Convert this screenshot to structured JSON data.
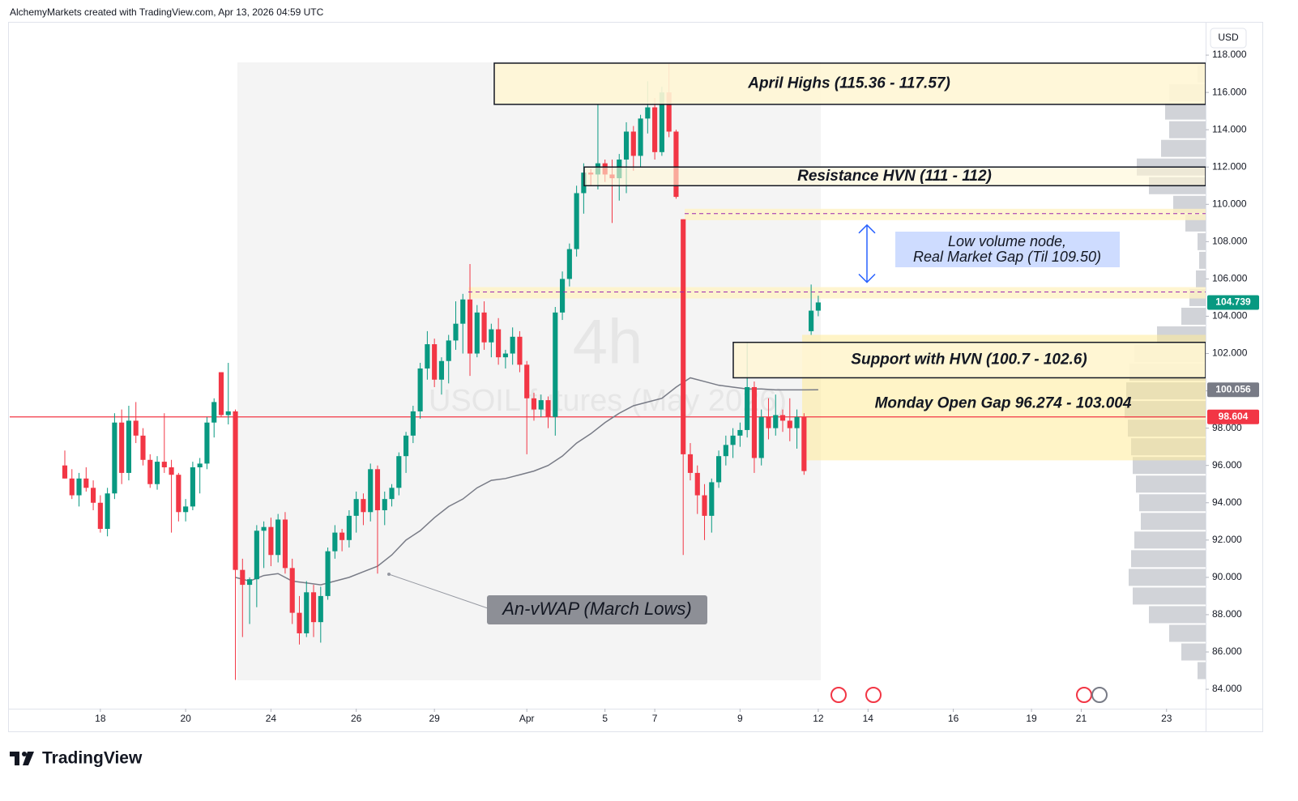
{
  "header": "AlchemyMarkets created with TradingView.com, Apr 13, 2026 04:59 UTC",
  "footer": "TradingView",
  "chart_data": {
    "type": "candlestick",
    "watermark": {
      "interval": "4h",
      "symbol": "USOIL futures (May 2026)"
    },
    "currency": "USD",
    "up_color": "#089981",
    "down_color": "#f23645",
    "ylim": [
      82.96,
      120.0
    ],
    "yticks": [
      {
        "value": 84,
        "label": "84.000"
      },
      {
        "value": 86,
        "label": "86.000"
      },
      {
        "value": 88,
        "label": "88.000"
      },
      {
        "value": 90,
        "label": "90.000"
      },
      {
        "value": 92,
        "label": "92.000"
      },
      {
        "value": 94,
        "label": "94.000"
      },
      {
        "value": 96,
        "label": "96.000"
      },
      {
        "value": 98,
        "label": "98.000"
      },
      {
        "value": 100,
        "label": "100.000"
      },
      {
        "value": 102,
        "label": "102.000"
      },
      {
        "value": 104,
        "label": "104.000"
      },
      {
        "value": 106,
        "label": "106.000"
      },
      {
        "value": 108,
        "label": "108.000"
      },
      {
        "value": 110,
        "label": "110.000"
      },
      {
        "value": 112,
        "label": "112.000"
      },
      {
        "value": 114,
        "label": "114.000"
      },
      {
        "value": 116,
        "label": "116.000"
      },
      {
        "value": 118,
        "label": "118.000"
      }
    ],
    "xlim": [
      -7.75,
      160.5
    ],
    "xticks": [
      {
        "value": 5,
        "label": "18"
      },
      {
        "value": 17,
        "label": "20"
      },
      {
        "value": 29,
        "label": "24"
      },
      {
        "value": 41,
        "label": "26"
      },
      {
        "value": 52,
        "label": "29"
      },
      {
        "value": 65,
        "label": "Apr"
      },
      {
        "value": 76,
        "label": "5"
      },
      {
        "value": 83,
        "label": "7"
      },
      {
        "value": 95,
        "label": "9"
      },
      {
        "value": 106,
        "label": "12"
      },
      {
        "value": 113,
        "label": "14"
      },
      {
        "value": 125,
        "label": "16"
      },
      {
        "value": 136,
        "label": "19"
      },
      {
        "value": 143,
        "label": "21"
      },
      {
        "value": 155,
        "label": "23"
      }
    ],
    "candles": [
      [
        96.0,
        96.8,
        95.3,
        95.3
      ],
      [
        95.3,
        95.8,
        94.2,
        94.4
      ],
      [
        94.4,
        95.6,
        93.8,
        95.3
      ],
      [
        95.3,
        95.9,
        94.6,
        94.8
      ],
      [
        94.8,
        95.2,
        93.6,
        94.0
      ],
      [
        94.0,
        94.4,
        92.4,
        92.6
      ],
      [
        92.6,
        94.8,
        92.2,
        94.5
      ],
      [
        94.5,
        98.8,
        94.2,
        98.3
      ],
      [
        98.3,
        99.0,
        95.0,
        95.6
      ],
      [
        95.6,
        99.2,
        95.2,
        98.4
      ],
      [
        98.4,
        99.4,
        97.2,
        97.6
      ],
      [
        97.6,
        98.0,
        96.0,
        96.3
      ],
      [
        96.3,
        96.6,
        94.8,
        95.0
      ],
      [
        95.0,
        96.5,
        94.7,
        96.2
      ],
      [
        96.2,
        98.8,
        95.6,
        95.9
      ],
      [
        95.9,
        96.3,
        92.4,
        95.5
      ],
      [
        95.5,
        95.6,
        93.0,
        93.5
      ],
      [
        93.5,
        94.2,
        93.0,
        93.8
      ],
      [
        93.8,
        96.2,
        93.6,
        95.9
      ],
      [
        95.9,
        96.4,
        94.5,
        96.1
      ],
      [
        96.1,
        98.6,
        95.8,
        98.3
      ],
      [
        98.3,
        99.6,
        97.5,
        99.4
      ],
      [
        101.0,
        101.0,
        98.6,
        98.7
      ],
      [
        98.7,
        101.5,
        98.2,
        98.9
      ],
      [
        98.9,
        99.0,
        84.5,
        90.4
      ],
      [
        90.4,
        91.0,
        86.8,
        89.6
      ],
      [
        89.6,
        90.0,
        87.5,
        89.9
      ],
      [
        89.9,
        92.8,
        88.4,
        92.5
      ],
      [
        92.5,
        93.0,
        90.5,
        92.7
      ],
      [
        92.7,
        93.2,
        90.6,
        91.2
      ],
      [
        91.2,
        93.4,
        90.8,
        93.1
      ],
      [
        93.1,
        93.5,
        90.2,
        90.5
      ],
      [
        90.5,
        91.0,
        87.5,
        88.1
      ],
      [
        88.1,
        89.0,
        86.4,
        87.0
      ],
      [
        87.0,
        89.8,
        86.8,
        89.2
      ],
      [
        89.2,
        89.6,
        86.8,
        87.6
      ],
      [
        87.6,
        89.5,
        86.5,
        89.0
      ],
      [
        89.0,
        91.6,
        88.8,
        91.4
      ],
      [
        91.4,
        92.8,
        91.0,
        92.4
      ],
      [
        92.4,
        92.6,
        91.4,
        92.0
      ],
      [
        92.0,
        93.6,
        91.6,
        93.3
      ],
      [
        93.3,
        94.6,
        92.4,
        94.2
      ],
      [
        94.2,
        94.5,
        92.8,
        93.5
      ],
      [
        93.5,
        96.1,
        93.0,
        95.8
      ],
      [
        95.8,
        96.0,
        90.2,
        93.6
      ],
      [
        93.6,
        94.6,
        92.8,
        94.2
      ],
      [
        94.2,
        95.0,
        93.8,
        94.8
      ],
      [
        94.8,
        96.7,
        94.4,
        96.5
      ],
      [
        96.5,
        97.8,
        95.6,
        97.6
      ],
      [
        97.6,
        99.2,
        97.2,
        98.9
      ],
      [
        98.9,
        101.5,
        98.5,
        101.2
      ],
      [
        101.2,
        103.2,
        100.6,
        102.5
      ],
      [
        102.5,
        102.8,
        100.2,
        100.6
      ],
      [
        100.6,
        101.8,
        99.8,
        101.6
      ],
      [
        101.6,
        103.0,
        100.4,
        102.7
      ],
      [
        102.7,
        104.8,
        102.2,
        103.6
      ],
      [
        103.6,
        105.2,
        102.0,
        104.9
      ],
      [
        104.9,
        106.8,
        100.8,
        102.0
      ],
      [
        102.0,
        104.6,
        101.8,
        104.2
      ],
      [
        104.2,
        104.8,
        102.2,
        102.6
      ],
      [
        102.6,
        103.6,
        101.8,
        103.3
      ],
      [
        103.3,
        103.9,
        101.4,
        101.8
      ],
      [
        101.8,
        102.2,
        101.2,
        102.0
      ],
      [
        102.0,
        103.4,
        101.4,
        102.9
      ],
      [
        102.9,
        103.2,
        101.0,
        101.4
      ],
      [
        101.4,
        101.6,
        96.6,
        99.6
      ],
      [
        99.6,
        99.9,
        98.4,
        99.0
      ],
      [
        99.0,
        99.8,
        98.6,
        99.5
      ],
      [
        99.5,
        99.7,
        98.0,
        98.6
      ],
      [
        98.6,
        104.5,
        97.6,
        104.2
      ],
      [
        104.2,
        106.4,
        103.8,
        106.0
      ],
      [
        106.0,
        107.9,
        105.6,
        107.6
      ],
      [
        107.6,
        111.0,
        107.2,
        110.6
      ],
      [
        110.6,
        112.2,
        109.5,
        111.7
      ],
      [
        111.7,
        111.9,
        111.0,
        111.6
      ],
      [
        111.6,
        115.4,
        110.8,
        112.2
      ],
      [
        112.2,
        112.4,
        111.2,
        111.6
      ],
      [
        111.6,
        112.4,
        109.0,
        111.4
      ],
      [
        111.4,
        112.7,
        110.2,
        112.4
      ],
      [
        112.4,
        114.4,
        110.6,
        113.9
      ],
      [
        113.9,
        114.2,
        111.8,
        112.6
      ],
      [
        112.6,
        114.8,
        112.0,
        114.6
      ],
      [
        114.6,
        116.6,
        113.8,
        115.2
      ],
      [
        115.2,
        115.7,
        112.4,
        112.8
      ],
      [
        112.8,
        116.3,
        112.6,
        116.0
      ],
      [
        116.0,
        117.57,
        113.6,
        113.9
      ],
      [
        113.9,
        114.0,
        110.3,
        110.4
      ],
      [
        109.2,
        109.2,
        91.2,
        96.6
      ],
      [
        96.6,
        97.2,
        95.2,
        95.6
      ],
      [
        95.6,
        96.0,
        93.4,
        94.4
      ],
      [
        94.4,
        95.0,
        92.0,
        93.3
      ],
      [
        93.3,
        95.3,
        92.4,
        95.1
      ],
      [
        95.1,
        96.8,
        94.8,
        96.5
      ],
      [
        96.5,
        97.6,
        96.0,
        97.1
      ],
      [
        97.1,
        98.0,
        96.4,
        97.6
      ],
      [
        97.6,
        98.3,
        97.0,
        97.9
      ],
      [
        97.9,
        102.6,
        97.5,
        100.2
      ],
      [
        100.2,
        100.5,
        95.6,
        96.4
      ],
      [
        96.4,
        99.0,
        96.0,
        98.6
      ],
      [
        98.6,
        99.6,
        97.4,
        98.0
      ],
      [
        98.0,
        99.8,
        97.6,
        98.7
      ],
      [
        98.7,
        99.0,
        97.8,
        98.4
      ],
      [
        98.4,
        99.6,
        97.3,
        98.0
      ],
      [
        98.0,
        99.0,
        96.9,
        98.6
      ],
      [
        98.6,
        98.8,
        95.5,
        95.7
      ],
      [
        103.2,
        105.7,
        103.0,
        104.3
      ],
      [
        104.3,
        105.1,
        104.0,
        104.739
      ]
    ],
    "vwap": {
      "name": "An-vWAP (March Lows)",
      "color": "#787b86",
      "x": [
        24,
        26,
        28,
        30,
        32,
        34,
        36,
        38,
        40,
        42,
        44,
        46,
        48,
        50,
        52,
        54,
        56,
        58,
        60,
        62,
        64,
        66,
        68,
        70,
        72,
        74,
        76,
        78,
        80,
        82,
        84,
        86,
        88,
        90,
        92,
        94,
        96,
        98,
        100,
        102,
        104,
        106
      ],
      "values": [
        90.0,
        89.8,
        90.1,
        90.2,
        89.8,
        89.7,
        89.6,
        89.8,
        90.0,
        90.3,
        90.6,
        91.2,
        92.0,
        92.5,
        93.2,
        93.8,
        94.2,
        94.8,
        95.2,
        95.3,
        95.5,
        95.7,
        96.0,
        96.5,
        97.2,
        97.7,
        98.3,
        98.8,
        99.2,
        99.4,
        99.6,
        100.2,
        100.7,
        100.5,
        100.3,
        100.2,
        100.1,
        100.1,
        100.05,
        100.05,
        100.05,
        100.056
      ]
    },
    "zones": [
      {
        "label": "April Highs (115.36 - 117.57)",
        "low": 115.36,
        "high": 117.57
      },
      {
        "label": "Resistance HVN (111 - 112)",
        "low": 111,
        "high": 112
      },
      {
        "label": "Support with HVN (100.7 - 102.6)",
        "low": 100.7,
        "high": 102.6
      },
      {
        "label": "Monday Open Gap 96.274 - 103.004",
        "low": 96.274,
        "high": 103.004
      }
    ],
    "lvn": {
      "label": [
        "Low volume node,",
        "Real Market Gap (Til 109.50)"
      ],
      "low": 105.3,
      "high": 109.5
    },
    "price_tags": [
      {
        "value": 104.739,
        "color": "#089981"
      },
      {
        "value": 100.056,
        "color": "#787b86"
      },
      {
        "value": 98.604,
        "color": "#f23645"
      }
    ],
    "volume_profile": {
      "prices": [
        85,
        86,
        87,
        88,
        89,
        90,
        91,
        92,
        93,
        94,
        95,
        96,
        97,
        98,
        99,
        100,
        101,
        102,
        103,
        104,
        105,
        106,
        107,
        108,
        109,
        110,
        111,
        112,
        113,
        114,
        115,
        116,
        117
      ],
      "volumes": [
        10,
        30,
        45,
        70,
        90,
        95,
        92,
        88,
        80,
        82,
        86,
        90,
        92,
        96,
        100,
        98,
        94,
        88,
        60,
        30,
        20,
        12,
        8,
        10,
        25,
        40,
        70,
        85,
        55,
        45,
        50,
        45,
        10
      ]
    }
  }
}
